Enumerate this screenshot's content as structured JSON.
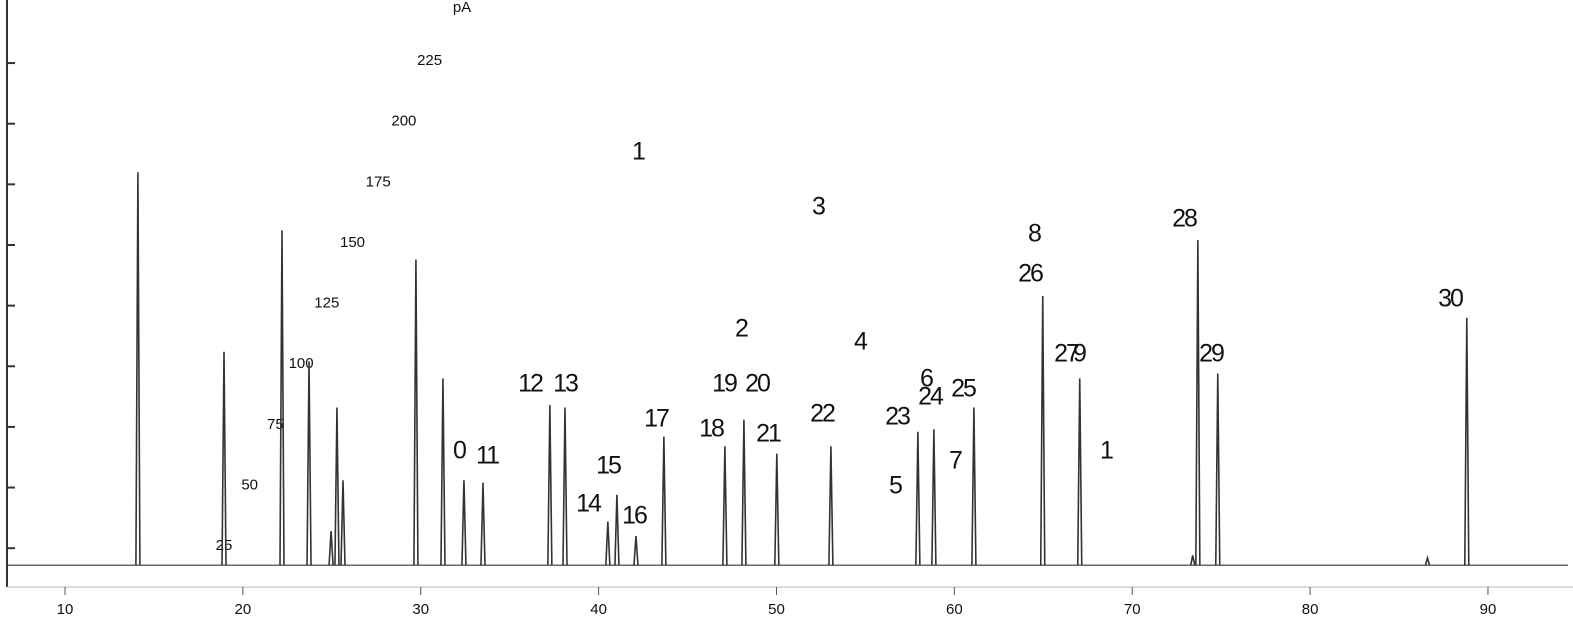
{
  "chart_data": {
    "type": "chromatogram",
    "y_label": "pA",
    "xlim": [
      6.74,
      94.5
    ],
    "xticks": [
      10,
      20,
      30,
      40,
      50,
      60,
      70,
      80,
      90
    ],
    "ylim": [
      9,
      251
    ],
    "yticks": [
      25,
      50,
      75,
      100,
      125,
      150,
      175,
      200,
      225
    ],
    "baseline": 18,
    "color": "#333333",
    "x": [
      14.1,
      18.94,
      22.2,
      23.72,
      24.96,
      25.29,
      25.63,
      29.73,
      31.25,
      32.43,
      33.5,
      37.26,
      38.11,
      40.52,
      41.03,
      42.1,
      43.67,
      47.1,
      48.17,
      50.02,
      53.06,
      57.95,
      58.85,
      61.1,
      64.97,
      67.05,
      73.4,
      73.69,
      74.81,
      86.6,
      88.81
    ],
    "values": [
      180,
      106,
      156,
      102,
      32,
      83,
      53,
      144,
      95,
      53,
      52,
      84,
      83,
      36,
      47,
      30,
      71,
      67,
      78,
      64,
      67,
      73,
      74,
      83,
      129,
      95,
      22,
      152,
      97,
      21,
      120
    ],
    "annotations": [
      "1",
      "3",
      "2",
      "4",
      "8",
      "26",
      "28",
      "30",
      "27",
      "9",
      "29",
      "12",
      "13",
      "19",
      "20",
      "6",
      "24",
      "25",
      "17",
      "22",
      "23",
      "18",
      "21",
      "0",
      "11",
      "1",
      "7",
      "15",
      "5",
      "14",
      "16"
    ]
  }
}
